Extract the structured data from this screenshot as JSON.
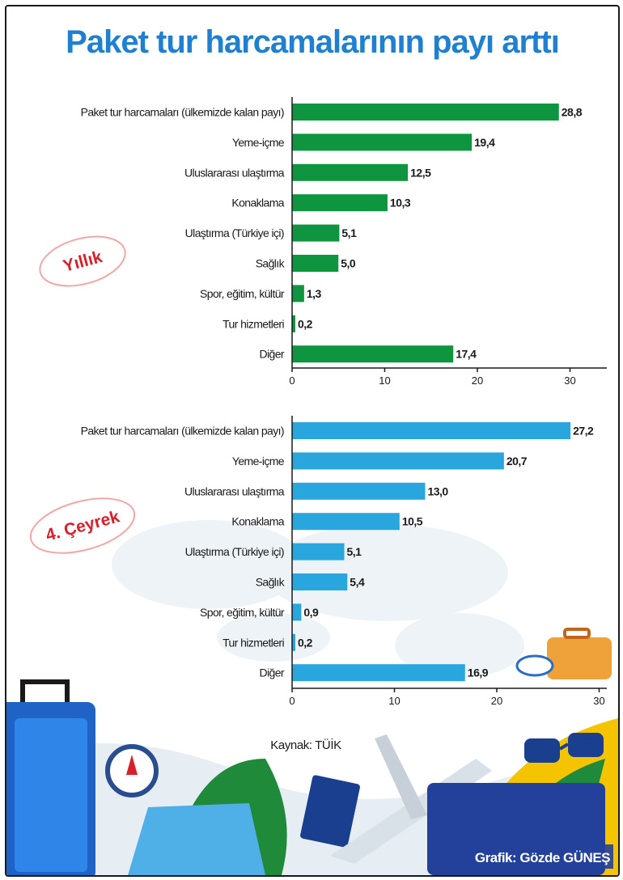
{
  "title": "Paket tur harcamalarının payı arttı",
  "source": "Kaynak: TÜİK",
  "credit": "Grafik: Gözde GÜNEŞ",
  "colors": {
    "title": "#1f7fd0",
    "annual_bar": "#0f9440",
    "quarter_bar": "#2aa6df",
    "badge_text": "#d6202a"
  },
  "chart_data": [
    {
      "type": "bar",
      "orientation": "horizontal",
      "panel_label": "Yıllık",
      "categories": [
        "Paket tur harcamaları (ülkemizde kalan payı)",
        "Yeme-içme",
        "Uluslararası ulaştırma",
        "Konaklama",
        "Ulaştırma (Türkiye içi)",
        "Sağlık",
        "Spor, eğitim, kültür",
        "Tur hizmetleri",
        "Diğer"
      ],
      "values": [
        28.8,
        19.4,
        12.5,
        10.3,
        5.1,
        5.0,
        1.3,
        0.2,
        17.4
      ],
      "value_labels": [
        "28,8",
        "19,4",
        "12,5",
        "10,3",
        "5,1",
        "5,0",
        "1,3",
        "0,2",
        "17,4"
      ],
      "xlim": [
        0,
        33
      ],
      "ticks": [
        0,
        10,
        20,
        30
      ],
      "color": "#0f9440"
    },
    {
      "type": "bar",
      "orientation": "horizontal",
      "panel_label": "4. Çeyrek",
      "categories": [
        "Paket tur harcamaları (ülkemizde kalan payı)",
        "Yeme-içme",
        "Uluslararası ulaştırma",
        "Konaklama",
        "Ulaştırma (Türkiye içi)",
        "Sağlık",
        "Spor, eğitim, kültür",
        "Tur hizmetleri",
        "Diğer"
      ],
      "values": [
        27.2,
        20.7,
        13.0,
        10.5,
        5.1,
        5.4,
        0.9,
        0.2,
        16.9
      ],
      "value_labels": [
        "27,2",
        "20,7",
        "13,0",
        "10,5",
        "5,1",
        "5,4",
        "0,9",
        "0,2",
        "16,9"
      ],
      "xlim": [
        0,
        31
      ],
      "ticks": [
        0,
        10,
        20,
        30
      ],
      "color": "#2aa6df"
    }
  ]
}
